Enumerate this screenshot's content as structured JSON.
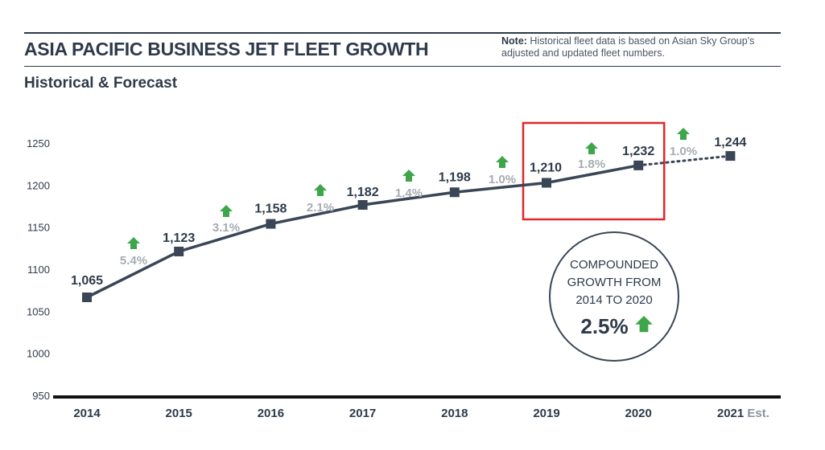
{
  "header": {
    "title": "ASIA PACIFIC BUSINESS JET FLEET GROWTH",
    "note_label": "Note:",
    "note_text": " Historical fleet data is based on Asian Sky Group's adjusted and updated fleet numbers.",
    "subtitle": "Historical & Forecast"
  },
  "colors": {
    "line": "#3a4656",
    "marker": "#3a4656",
    "arrow": "#3ea64a",
    "highlight_box": "#e0262b",
    "percent_text": "#a7acb2",
    "axis": "#111111"
  },
  "chart_data": {
    "type": "line",
    "title": "ASIA PACIFIC BUSINESS JET FLEET GROWTH",
    "subtitle": "Historical & Forecast",
    "xlabel": "",
    "ylabel": "",
    "categories": [
      "2014",
      "2015",
      "2016",
      "2017",
      "2018",
      "2019",
      "2020",
      "2021"
    ],
    "category_suffix": {
      "2021": "Est."
    },
    "values": [
      1065,
      1123,
      1158,
      1182,
      1198,
      1210,
      1232,
      1244
    ],
    "value_labels": [
      "1,065",
      "1,123",
      "1,158",
      "1,182",
      "1,198",
      "1,210",
      "1,232",
      "1,244"
    ],
    "forecast_from_index": 6,
    "growth_rates": [
      {
        "between": [
          "2014",
          "2015"
        ],
        "label": "5.4%",
        "direction": "up"
      },
      {
        "between": [
          "2015",
          "2016"
        ],
        "label": "3.1%",
        "direction": "up"
      },
      {
        "between": [
          "2016",
          "2017"
        ],
        "label": "2.1%",
        "direction": "up"
      },
      {
        "between": [
          "2017",
          "2018"
        ],
        "label": "1.4%",
        "direction": "up"
      },
      {
        "between": [
          "2018",
          "2019"
        ],
        "label": "1.0%",
        "direction": "up"
      },
      {
        "between": [
          "2019",
          "2020"
        ],
        "label": "1.8%",
        "direction": "up"
      },
      {
        "between": [
          "2020",
          "2021"
        ],
        "label": "1.0%",
        "direction": "up"
      }
    ],
    "ylim": [
      950,
      1250
    ],
    "yticks": [
      950,
      1000,
      1050,
      1100,
      1150,
      1200,
      1250
    ],
    "grid": false,
    "legend": "none",
    "highlight": {
      "from": "2019",
      "to": "2020"
    },
    "annotation": {
      "lines": [
        "COMPOUNDED",
        "GROWTH FROM",
        "2014 TO 2020"
      ],
      "value": "2.5%",
      "direction": "up"
    }
  }
}
